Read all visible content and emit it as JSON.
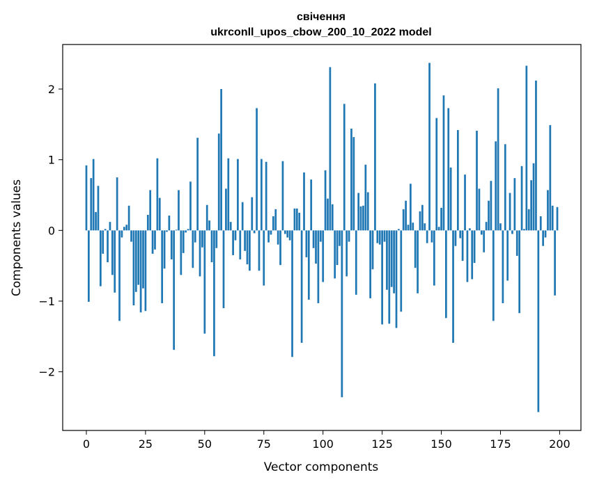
{
  "chart_data": {
    "type": "bar",
    "title": "свічення",
    "subtitle": "ukrconll_upos_cbow_200_10_2022 model",
    "xlabel": "Vector components",
    "ylabel": "Components values",
    "xlim": [
      -10,
      209
    ],
    "ylim": [
      -2.83,
      2.63
    ],
    "xticks": [
      0,
      25,
      50,
      75,
      100,
      125,
      150,
      175,
      200
    ],
    "yticks": [
      -2,
      -1,
      0,
      1,
      2
    ],
    "xtick_labels": [
      "0",
      "25",
      "50",
      "75",
      "100",
      "125",
      "150",
      "175",
      "200"
    ],
    "ytick_labels": [
      "−2",
      "−1",
      "0",
      "1",
      "2"
    ],
    "bar_color": "#1f77b4",
    "grid": false,
    "values": [
      0.92,
      -1.01,
      0.74,
      1.01,
      0.26,
      0.63,
      -0.79,
      -0.33,
      0.02,
      -0.45,
      0.12,
      -0.63,
      -0.88,
      0.75,
      -1.28,
      -0.1,
      0.05,
      0.08,
      0.35,
      -0.16,
      -1.06,
      -0.87,
      -0.77,
      -1.16,
      -0.82,
      -1.14,
      0.22,
      0.57,
      -0.33,
      -0.27,
      1.02,
      0.46,
      -1.03,
      -0.54,
      -0.02,
      0.21,
      -0.41,
      -1.69,
      0.01,
      0.57,
      -0.63,
      -0.32,
      -0.03,
      0.02,
      0.69,
      -0.53,
      -0.17,
      1.31,
      -0.65,
      -0.24,
      -1.46,
      0.36,
      0.14,
      -0.45,
      -1.78,
      -0.25,
      1.37,
      2.0,
      -1.1,
      0.59,
      1.02,
      0.12,
      -0.35,
      -0.14,
      1.01,
      -0.41,
      0.4,
      -0.29,
      -0.48,
      -0.57,
      0.47,
      -0.04,
      1.73,
      -0.57,
      1.01,
      -0.78,
      0.97,
      -0.17,
      -0.06,
      0.2,
      0.3,
      -0.2,
      -0.49,
      0.98,
      -0.05,
      -0.1,
      -0.14,
      -1.79,
      0.31,
      0.31,
      0.25,
      -1.59,
      0.82,
      -0.38,
      -0.98,
      0.72,
      -0.25,
      -0.47,
      -1.03,
      -0.16,
      -0.73,
      0.85,
      0.45,
      2.31,
      0.37,
      -0.68,
      -0.49,
      -0.22,
      -2.36,
      1.79,
      -0.65,
      -0.16,
      1.44,
      1.32,
      -0.91,
      0.53,
      0.34,
      0.35,
      0.93,
      0.54,
      -0.96,
      -0.55,
      2.08,
      -0.18,
      -0.2,
      -1.33,
      -0.16,
      -0.84,
      -1.32,
      -0.8,
      -0.89,
      -1.38,
      0.02,
      -1.15,
      0.3,
      0.42,
      0.08,
      0.66,
      0.11,
      -0.53,
      -0.89,
      0.27,
      0.36,
      0.1,
      -0.18,
      2.37,
      -0.17,
      -0.78,
      1.59,
      0.05,
      0.32,
      1.91,
      -1.24,
      1.73,
      0.89,
      -1.59,
      -0.22,
      1.42,
      -0.11,
      -0.43,
      0.79,
      -0.73,
      0.03,
      -0.69,
      -0.46,
      1.41,
      0.59,
      -0.06,
      -0.31,
      0.12,
      0.42,
      0.7,
      -1.28,
      1.26,
      2.01,
      0.1,
      -1.03,
      1.22,
      -0.71,
      0.53,
      -0.05,
      0.74,
      -0.36,
      -1.17,
      0.91,
      0.02,
      2.33,
      0.3,
      0.71,
      0.95,
      2.12,
      -2.57,
      0.2,
      -0.22,
      -0.1,
      0.57,
      1.49,
      0.35,
      -0.92,
      0.33
    ]
  }
}
